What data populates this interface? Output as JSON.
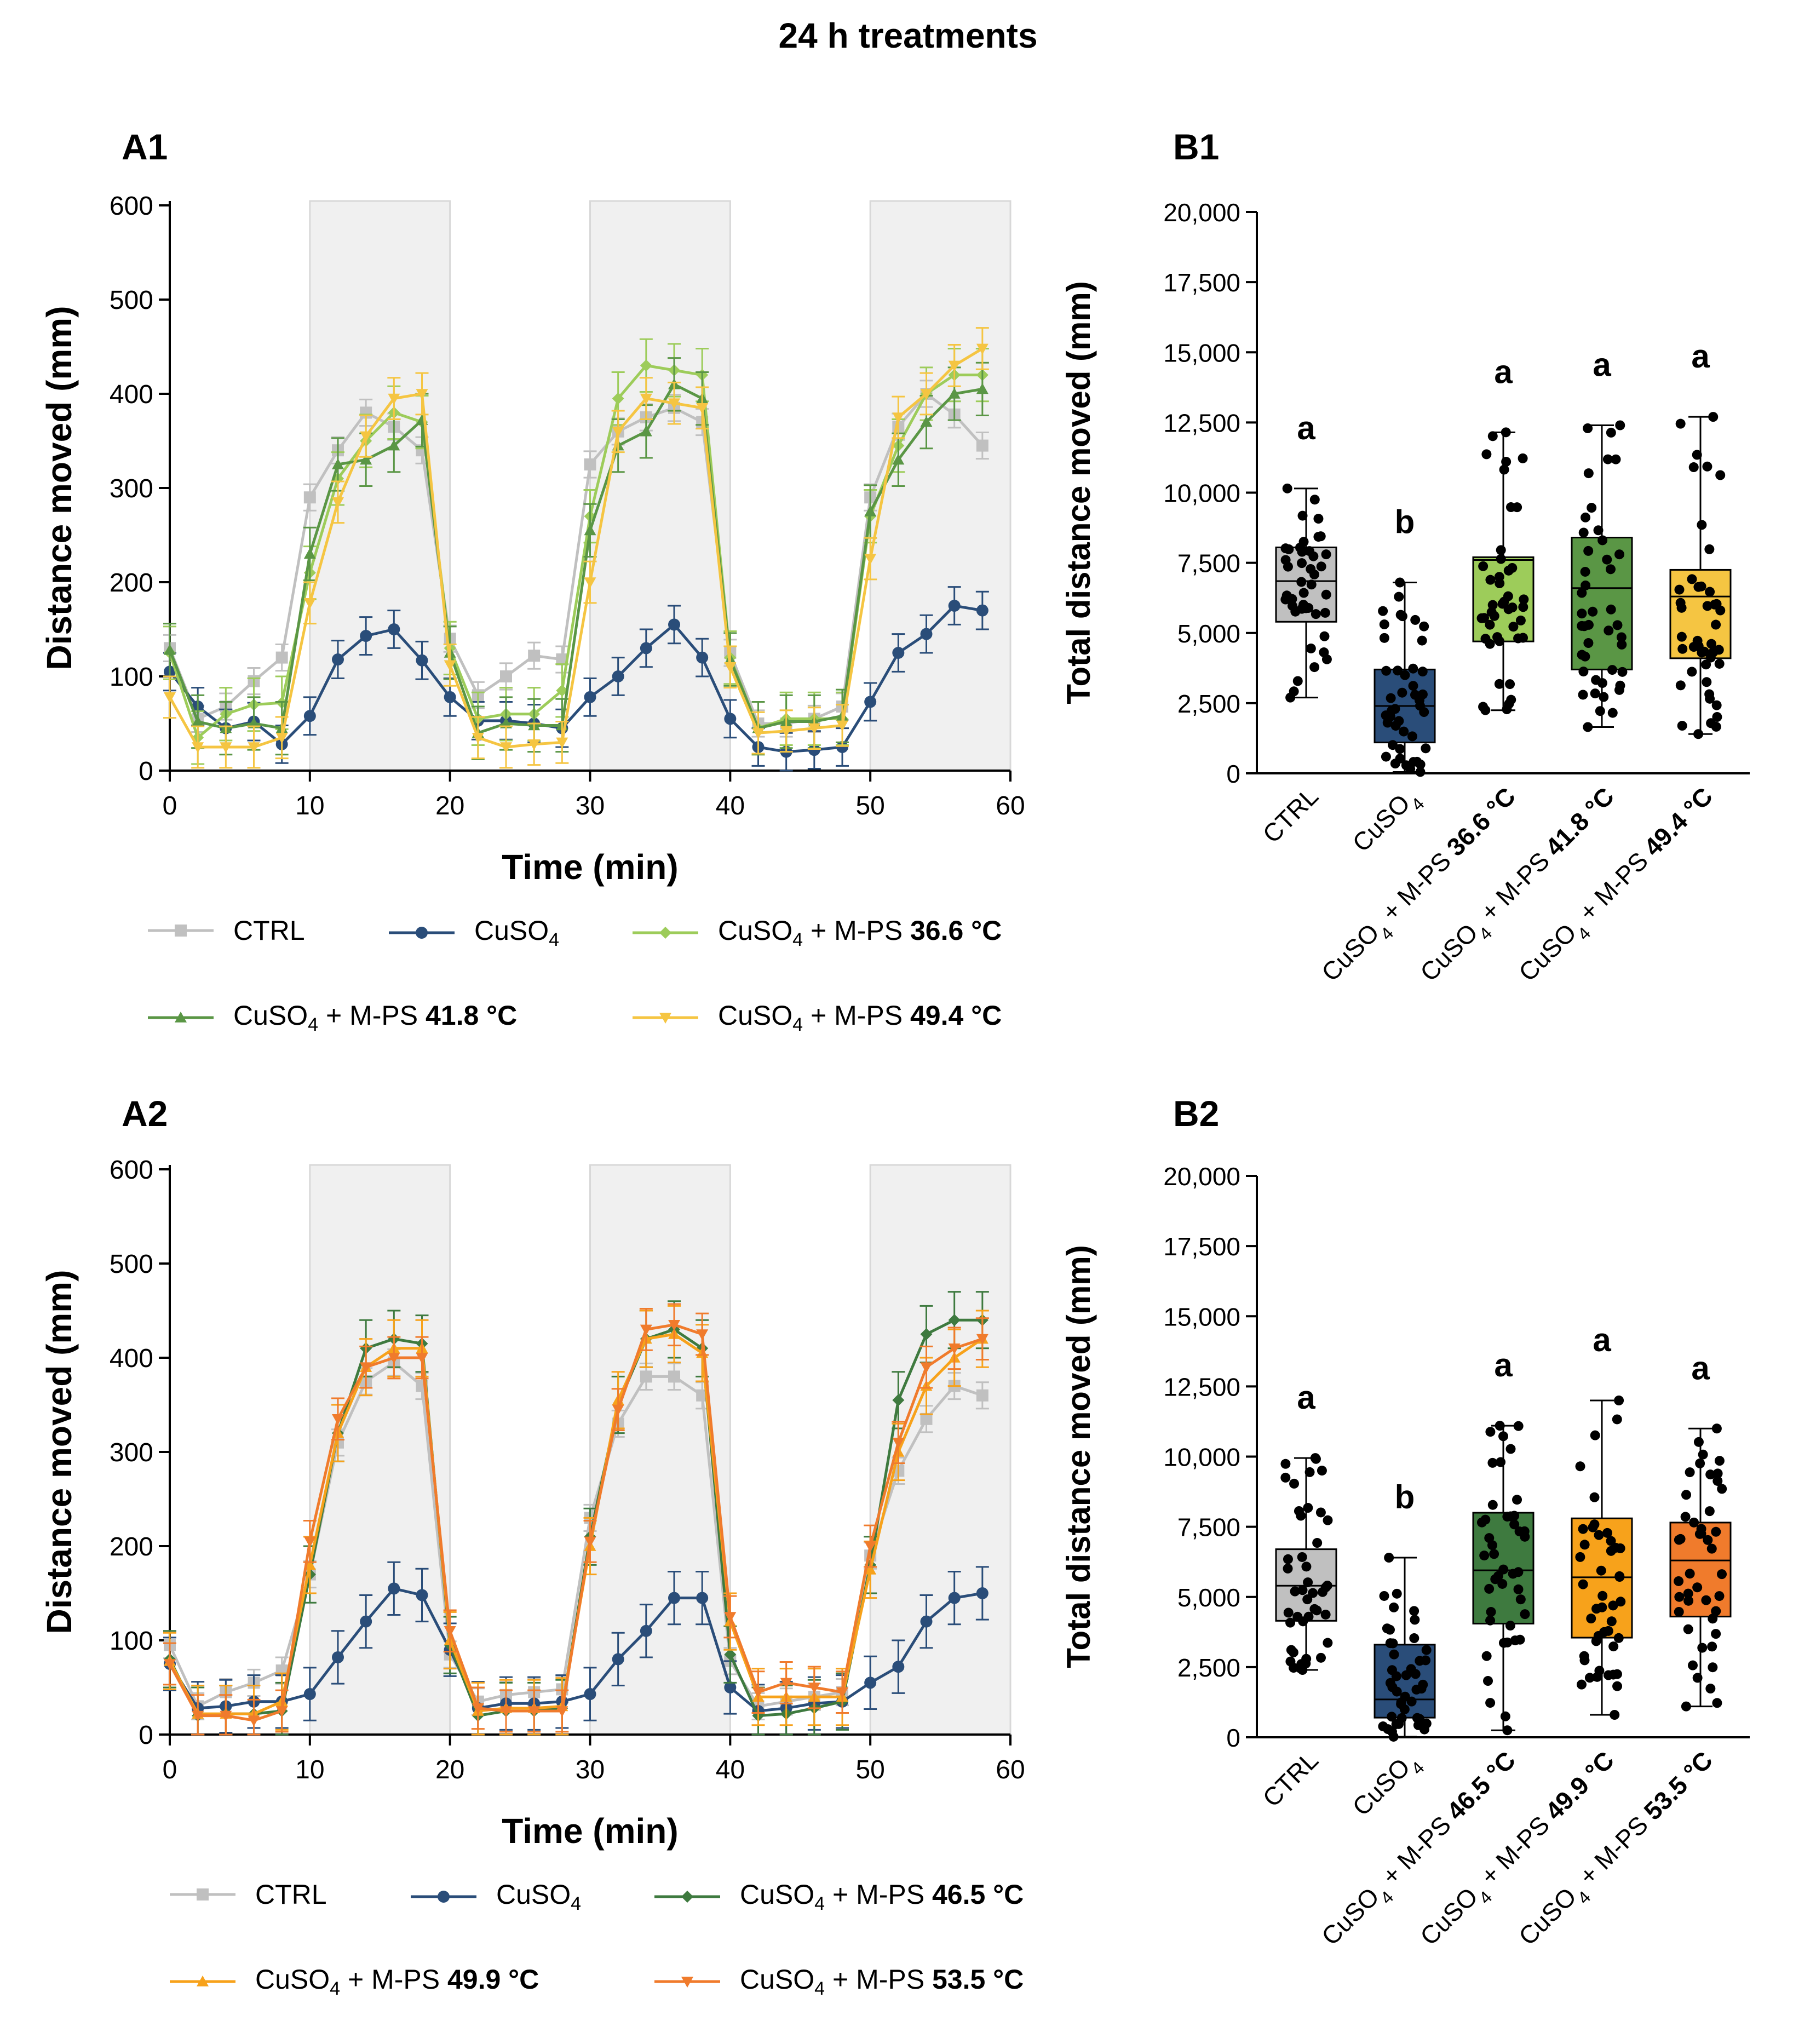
{
  "title": "24 h treatments",
  "colors": {
    "ctrl": "#c0c0c0",
    "cuso4": "#2a4d79",
    "t366": "#9dcc5a",
    "t418": "#5a9645",
    "t494": "#f5c542",
    "t465": "#3e7a3f",
    "t499": "#f7a21b",
    "t535": "#f07b2c",
    "shade": "#f0f0f0",
    "axis": "#000000"
  },
  "panels": {
    "A1": {
      "label": "A1"
    },
    "B1": {
      "label": "B1"
    },
    "A2": {
      "label": "A2"
    },
    "B2": {
      "label": "B2"
    }
  },
  "legends": {
    "row1": [
      {
        "key": "ctrl",
        "text": "CTRL",
        "sub": "",
        "bold": "",
        "marker": "square"
      },
      {
        "key": "cuso4",
        "text": "CuSO",
        "sub": "4",
        "bold": "",
        "marker": "circle"
      },
      {
        "key": "t366",
        "text": "CuSO",
        "sub": "4",
        "rest": " + M-PS ",
        "bold": "36.6 °C",
        "marker": "diamond"
      },
      {
        "key": "t418",
        "text": "CuSO",
        "sub": "4",
        "rest": " + M-PS ",
        "bold": "41.8 °C",
        "marker": "tri-up"
      },
      {
        "key": "t494",
        "text": "CuSO",
        "sub": "4",
        "rest": " + M-PS ",
        "bold": "49.4 °C",
        "marker": "tri-down"
      }
    ],
    "row2": [
      {
        "key": "ctrl",
        "text": "CTRL",
        "sub": "",
        "bold": "",
        "marker": "square"
      },
      {
        "key": "cuso4",
        "text": "CuSO",
        "sub": "4",
        "bold": "",
        "marker": "circle"
      },
      {
        "key": "t465",
        "text": "CuSO",
        "sub": "4",
        "rest": " + M-PS ",
        "bold": "46.5 °C",
        "marker": "diamond"
      },
      {
        "key": "t499",
        "text": "CuSO",
        "sub": "4",
        "rest": " + M-PS ",
        "bold": "49.9 °C",
        "marker": "tri-up"
      },
      {
        "key": "t535",
        "text": "CuSO",
        "sub": "4",
        "rest": " + M-PS ",
        "bold": "53.5 °C",
        "marker": "tri-down"
      }
    ]
  },
  "chart_data": [
    {
      "id": "A1",
      "type": "line",
      "xlabel": "Time (min)",
      "ylabel": "Distance moved (mm)",
      "xlim": [
        0,
        60
      ],
      "ylim": [
        0,
        600
      ],
      "xticks": [
        0,
        10,
        20,
        30,
        40,
        50,
        60
      ],
      "yticks": [
        0,
        100,
        200,
        300,
        400,
        500,
        600
      ],
      "shaded_intervals": [
        [
          10,
          20
        ],
        [
          30,
          40
        ],
        [
          50,
          60
        ]
      ],
      "x": [
        0,
        2,
        4,
        6,
        8,
        10,
        12,
        14,
        16,
        18,
        20,
        22,
        24,
        26,
        28,
        30,
        32,
        34,
        36,
        38,
        40,
        42,
        44,
        46,
        48,
        50,
        52,
        54,
        56,
        58
      ],
      "series": [
        {
          "name": "CTRL",
          "key": "ctrl",
          "marker": "square",
          "error": 14,
          "values": [
            130,
            55,
            68,
            95,
            120,
            290,
            340,
            380,
            365,
            340,
            140,
            80,
            100,
            122,
            118,
            325,
            360,
            375,
            385,
            370,
            125,
            50,
            50,
            55,
            68,
            290,
            365,
            400,
            378,
            345
          ]
        },
        {
          "name": "CuSO4",
          "key": "cuso4",
          "marker": "circle",
          "error": 20,
          "values": [
            105,
            68,
            45,
            52,
            28,
            58,
            118,
            143,
            150,
            117,
            78,
            53,
            53,
            50,
            45,
            78,
            100,
            130,
            155,
            120,
            55,
            25,
            20,
            22,
            25,
            73,
            125,
            145,
            175,
            170
          ]
        },
        {
          "name": "CuSO4 + M-PS 36.6 °C",
          "key": "t366",
          "marker": "diamond",
          "error": 28,
          "values": [
            125,
            35,
            60,
            70,
            72,
            210,
            310,
            350,
            380,
            370,
            130,
            55,
            60,
            60,
            85,
            270,
            395,
            430,
            425,
            420,
            120,
            45,
            55,
            55,
            55,
            270,
            345,
            400,
            420,
            420
          ]
        },
        {
          "name": "CuSO4 + M-PS 41.8 °C",
          "key": "t418",
          "marker": "tri-up",
          "error": 28,
          "values": [
            128,
            52,
            45,
            50,
            45,
            230,
            325,
            330,
            345,
            372,
            125,
            40,
            50,
            48,
            48,
            255,
            345,
            360,
            410,
            395,
            118,
            45,
            52,
            52,
            58,
            275,
            330,
            370,
            400,
            405
          ]
        },
        {
          "name": "CuSO4 + M-PS 49.4 °C",
          "key": "t494",
          "marker": "tri-down",
          "error": 22,
          "values": [
            78,
            25,
            25,
            25,
            35,
            178,
            285,
            355,
            395,
            400,
            112,
            35,
            25,
            28,
            30,
            200,
            360,
            395,
            390,
            385,
            110,
            40,
            42,
            45,
            48,
            225,
            375,
            400,
            430,
            448
          ]
        }
      ]
    },
    {
      "id": "B1",
      "type": "box",
      "ylabel": "Total distance moved (mm)",
      "ylim": [
        0,
        20000
      ],
      "yticks": [
        0,
        2500,
        5000,
        7500,
        10000,
        12500,
        15000,
        17500,
        20000
      ],
      "ytick_labels": [
        "0",
        "2,500",
        "5,000",
        "7,500",
        "10,000",
        "12,500",
        "15,000",
        "17,500",
        "20,000"
      ],
      "groups": [
        {
          "cat": "CTRL",
          "sub": "",
          "rest": "",
          "bold": "",
          "key": "ctrl",
          "min": 2700,
          "q1": 5400,
          "median": 6850,
          "q3": 8050,
          "max": 10150,
          "letter": "a"
        },
        {
          "cat": "CuSO",
          "sub": "4",
          "rest": "",
          "bold": "",
          "key": "cuso4",
          "min": 50,
          "q1": 1100,
          "median": 2400,
          "q3": 3700,
          "max": 6800,
          "letter": "b"
        },
        {
          "cat": "CuSO",
          "sub": "4",
          "rest": " + M-PS ",
          "bold": "36.6 °C",
          "key": "t366",
          "min": 2250,
          "q1": 4700,
          "median": 7600,
          "q3": 7700,
          "max": 12150,
          "letter": "a"
        },
        {
          "cat": "CuSO",
          "sub": "4",
          "rest": " + M-PS ",
          "bold": "41.8 °C",
          "key": "t418",
          "min": 1650,
          "q1": 3700,
          "median": 6600,
          "q3": 8400,
          "max": 12400,
          "letter": "a"
        },
        {
          "cat": "CuSO",
          "sub": "4",
          "rest": " + M-PS ",
          "bold": "49.4 °C",
          "key": "t494",
          "min": 1400,
          "q1": 4100,
          "median": 6300,
          "q3": 7250,
          "max": 12700,
          "letter": "a"
        }
      ]
    },
    {
      "id": "A2",
      "type": "line",
      "xlabel": "Time (min)",
      "ylabel": "Distance moved (mm)",
      "xlim": [
        0,
        60
      ],
      "ylim": [
        0,
        600
      ],
      "xticks": [
        0,
        10,
        20,
        30,
        40,
        50,
        60
      ],
      "yticks": [
        0,
        100,
        200,
        300,
        400,
        500,
        600
      ],
      "shaded_intervals": [
        [
          10,
          20
        ],
        [
          30,
          40
        ],
        [
          50,
          60
        ]
      ],
      "x": [
        0,
        2,
        4,
        6,
        8,
        10,
        12,
        14,
        16,
        18,
        20,
        22,
        24,
        26,
        28,
        30,
        32,
        34,
        36,
        38,
        40,
        42,
        44,
        46,
        48,
        50,
        52,
        54,
        56,
        58
      ],
      "series": [
        {
          "name": "CTRL",
          "key": "ctrl",
          "marker": "square",
          "error": 14,
          "values": [
            95,
            30,
            45,
            55,
            68,
            170,
            310,
            375,
            395,
            370,
            85,
            35,
            42,
            45,
            48,
            230,
            330,
            380,
            380,
            360,
            78,
            30,
            35,
            40,
            45,
            190,
            280,
            335,
            370,
            360
          ]
        },
        {
          "name": "CuSO4",
          "key": "cuso4",
          "marker": "circle",
          "error": 28,
          "values": [
            75,
            28,
            30,
            35,
            35,
            43,
            82,
            120,
            155,
            148,
            90,
            28,
            33,
            33,
            35,
            43,
            80,
            110,
            145,
            145,
            50,
            25,
            28,
            33,
            35,
            55,
            72,
            120,
            145,
            150
          ]
        },
        {
          "name": "CuSO4 + M-PS 46.5 °C",
          "key": "t465",
          "marker": "diamond",
          "error": 30,
          "values": [
            80,
            20,
            22,
            22,
            25,
            170,
            320,
            410,
            420,
            415,
            95,
            20,
            25,
            25,
            28,
            210,
            350,
            420,
            430,
            410,
            85,
            20,
            22,
            28,
            35,
            180,
            355,
            425,
            440,
            440
          ]
        },
        {
          "name": "CuSO4 + M-PS 49.9 °C",
          "key": "t499",
          "marker": "tri-up",
          "error": 30,
          "values": [
            78,
            22,
            22,
            22,
            35,
            180,
            320,
            390,
            410,
            410,
            100,
            25,
            28,
            28,
            30,
            200,
            355,
            420,
            425,
            405,
            120,
            40,
            40,
            40,
            40,
            175,
            300,
            370,
            400,
            420
          ]
        },
        {
          "name": "CuSO4 + M-PS 53.5 °C",
          "key": "t535",
          "marker": "tri-down",
          "error": 22,
          "values": [
            75,
            20,
            20,
            15,
            25,
            205,
            335,
            390,
            400,
            400,
            110,
            28,
            25,
            25,
            25,
            205,
            345,
            430,
            435,
            425,
            125,
            45,
            55,
            50,
            45,
            200,
            310,
            390,
            410,
            420
          ]
        }
      ]
    },
    {
      "id": "B2",
      "type": "box",
      "ylabel": "Total distance moved (mm)",
      "ylim": [
        0,
        20000
      ],
      "yticks": [
        0,
        2500,
        5000,
        7500,
        10000,
        12500,
        15000,
        17500,
        20000
      ],
      "ytick_labels": [
        "0",
        "2,500",
        "5,000",
        "7,500",
        "10,000",
        "12,500",
        "15,000",
        "17,500",
        "20,000"
      ],
      "groups": [
        {
          "cat": "CTRL",
          "sub": "",
          "rest": "",
          "bold": "",
          "key": "ctrl",
          "min": 2400,
          "q1": 4150,
          "median": 5400,
          "q3": 6700,
          "max": 9950,
          "letter": "a"
        },
        {
          "cat": "CuSO",
          "sub": "4",
          "rest": "",
          "bold": "",
          "key": "cuso4",
          "min": 20,
          "q1": 700,
          "median": 1350,
          "q3": 3300,
          "max": 6400,
          "letter": "b"
        },
        {
          "cat": "CuSO",
          "sub": "4",
          "rest": " + M-PS ",
          "bold": "46.5 °C",
          "key": "t465",
          "min": 250,
          "q1": 4050,
          "median": 5950,
          "q3": 8000,
          "max": 11100,
          "letter": "a"
        },
        {
          "cat": "CuSO",
          "sub": "4",
          "rest": " + M-PS ",
          "bold": "49.9 °C",
          "key": "t499",
          "min": 800,
          "q1": 3550,
          "median": 5700,
          "q3": 7800,
          "max": 12000,
          "letter": "a"
        },
        {
          "cat": "CuSO",
          "sub": "4",
          "rest": " + M-PS ",
          "bold": "53.5 °C",
          "key": "t535",
          "min": 1100,
          "q1": 4300,
          "median": 6300,
          "q3": 7650,
          "max": 11000,
          "letter": "a"
        }
      ]
    }
  ]
}
